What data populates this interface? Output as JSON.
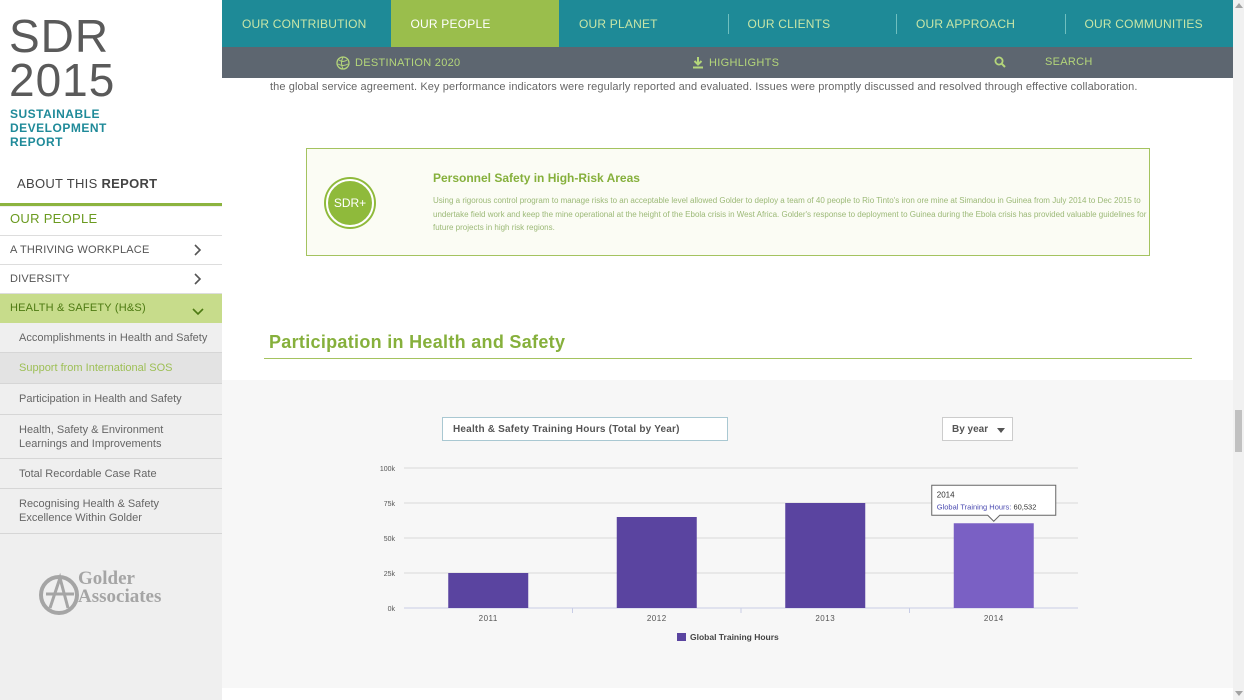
{
  "brand": {
    "title_line1": "SDR",
    "title_line2": "2015",
    "subtitle_lines": [
      "SUSTAINABLE",
      "DEVELOPMENT",
      "REPORT"
    ],
    "accent": "#8cb43f",
    "teal": "#1e8a97"
  },
  "sidebar": {
    "about_prefix": "ABOUT THIS ",
    "about_bold": "REPORT",
    "section_title": "OUR PEOPLE",
    "nav": [
      {
        "label": "A THRIVING WORKPLACE",
        "icon": "chevron-right-icon"
      },
      {
        "label": "DIVERSITY",
        "icon": "chevron-right-icon"
      },
      {
        "label": "HEALTH & SAFETY (H&S)",
        "icon": "chevron-down-icon",
        "expanded": true
      }
    ],
    "sub_items": [
      {
        "label": "Accomplishments in Health and Safety"
      },
      {
        "label": "Support from International SOS",
        "current": true
      },
      {
        "label": "Participation in Health and Safety"
      },
      {
        "label": "Health, Safety & Environment Learnings and Improvements"
      },
      {
        "label": "Total Recordable Case Rate"
      },
      {
        "label": "Recognising Health & Safety Excellence Within Golder"
      }
    ],
    "logo_text_line1": "Golder",
    "logo_text_line2": "Associates"
  },
  "topnav": {
    "items": [
      "OUR CONTRIBUTION",
      "OUR PEOPLE",
      "OUR PLANET",
      "OUR CLIENTS",
      "OUR APPROACH",
      "OUR COMMUNITIES"
    ],
    "active_index": 1
  },
  "subnav": {
    "destination": "DESTINATION 2020",
    "highlights": "HIGHLIGHTS",
    "search": "SEARCH"
  },
  "main": {
    "continued_text": "the global service agreement.  Key performance indicators were regularly reported and evaluated.  Issues were promptly discussed and resolved through effective collaboration.",
    "callout": {
      "badge": "SDR+",
      "title": "Personnel Safety in High-Risk Areas",
      "body": "Using a rigorous control program to manage risks to an acceptable level allowed Golder to deploy a team of 40 people to Rio Tinto's iron ore mine at Simandou in Guinea from July 2014 to Dec 2015 to undertake field work and keep the mine operational at the height of the Ebola crisis in West Africa. Golder's response to deployment to Guinea during the Ebola crisis has provided valuable guidelines for future projects in high risk regions."
    },
    "section_heading": "Participation in Health and Safety",
    "chart_select": "Health & Safety Training Hours (Total by Year)",
    "period_select": "By year"
  },
  "chart_data": {
    "type": "bar",
    "categories": [
      "2011",
      "2012",
      "2013",
      "2014"
    ],
    "series": [
      {
        "name": "Global Training Hours",
        "values": [
          25000,
          65000,
          75000,
          60532
        ]
      }
    ],
    "ylim": [
      0,
      100000
    ],
    "yticks": [
      0,
      25000,
      50000,
      75000,
      100000
    ],
    "ytick_labels": [
      "0k",
      "25k",
      "50k",
      "75k",
      "100k"
    ],
    "bar_color": "#5a44a0",
    "highlight_color": "#7a60c4",
    "highlight_index": 3,
    "grid": true,
    "legend": "bottom",
    "tooltip": {
      "title": "2014",
      "label": "Global Training Hours: ",
      "value": "60,532"
    }
  }
}
